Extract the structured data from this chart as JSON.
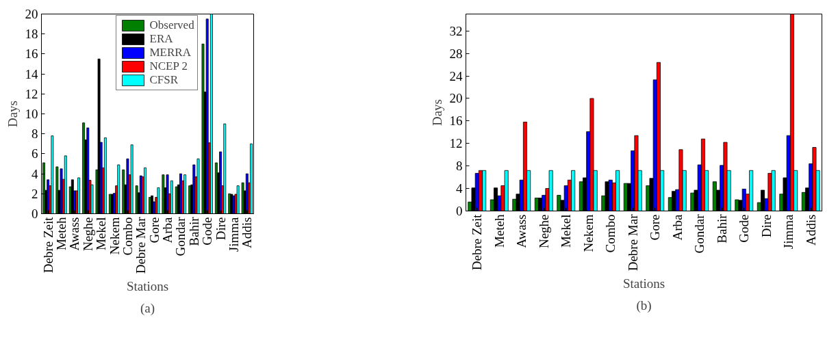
{
  "chart_data": [
    {
      "type": "bar",
      "xlabel": "Stations",
      "ylabel": "Days",
      "annotations": [
        "(a)"
      ],
      "legend": "top right",
      "grid": false,
      "categories": [
        "Debre Zeit",
        "Meteh",
        "Awass",
        "Neghe",
        "Mekel",
        "Nekem",
        "Combo",
        "Debre Mar",
        "Gore",
        "Arba",
        "Gondar",
        "Bahir",
        "Gode",
        "Dire",
        "Jimma",
        "Addis"
      ],
      "ylim": [
        0,
        20
      ],
      "yticks": [
        0,
        2,
        4,
        6,
        8,
        10,
        12,
        14,
        16,
        18,
        20
      ],
      "series": [
        {
          "name": "Observed",
          "color": "#007f00",
          "values": [
            5.1,
            4.7,
            2.7,
            9.1,
            4.4,
            1.95,
            4.4,
            2.8,
            1.65,
            3.9,
            2.7,
            2.8,
            17.0,
            5.1,
            2.0,
            3.1
          ]
        },
        {
          "name": "ERA",
          "color": "#000000",
          "values": [
            2.35,
            2.35,
            3.4,
            7.4,
            15.5,
            1.95,
            2.9,
            2.1,
            1.8,
            2.6,
            2.9,
            2.9,
            12.2,
            4.1,
            1.95,
            2.3
          ]
        },
        {
          "name": "MERRA",
          "color": "#0000ff",
          "values": [
            3.4,
            4.5,
            2.3,
            8.6,
            7.15,
            2.05,
            5.5,
            3.8,
            1.2,
            3.9,
            4.0,
            4.9,
            19.5,
            6.2,
            1.8,
            4.0
          ]
        },
        {
          "name": "NCEP 2",
          "color": "#ff0000",
          "values": [
            2.8,
            3.45,
            2.3,
            3.35,
            4.6,
            2.8,
            3.9,
            3.7,
            1.65,
            2.0,
            3.3,
            3.7,
            7.1,
            2.8,
            1.95,
            3.1
          ]
        },
        {
          "name": "CFSR",
          "color": "#00ffff",
          "values": [
            7.8,
            5.8,
            3.6,
            2.9,
            7.6,
            4.9,
            6.9,
            4.6,
            2.6,
            3.3,
            3.9,
            5.5,
            20,
            9.0,
            2.8,
            7.0
          ]
        }
      ]
    },
    {
      "type": "bar",
      "xlabel": "Stations",
      "ylabel": "Days",
      "annotations": [
        "(b)"
      ],
      "grid": false,
      "categories": [
        "Debre Zeit",
        "Meteh",
        "Awass",
        "Neghe",
        "Mekel",
        "Nekem",
        "Combo",
        "Debre Mar",
        "Gore",
        "Arba",
        "Gondar",
        "Bahir",
        "Gode",
        "Dire",
        "Jimma",
        "Addis"
      ],
      "ylim": [
        0,
        35
      ],
      "yticks": [
        0,
        4,
        8,
        12,
        16,
        20,
        24,
        28,
        32
      ],
      "series": [
        {
          "color": "#007f00",
          "values": [
            1.6,
            2.0,
            2.1,
            2.3,
            2.8,
            5.2,
            2.7,
            4.9,
            4.5,
            2.4,
            3.2,
            5.2,
            2.0,
            1.5,
            3.0,
            3.3
          ]
        },
        {
          "color": "#000000",
          "values": [
            4.1,
            4.1,
            3.0,
            2.3,
            1.9,
            5.9,
            5.2,
            4.9,
            5.8,
            3.5,
            3.7,
            3.7,
            1.9,
            3.7,
            5.9,
            4.1
          ]
        },
        {
          "color": "#0000ff",
          "values": [
            6.7,
            2.7,
            5.5,
            2.8,
            4.5,
            14.1,
            5.5,
            10.7,
            23.3,
            3.8,
            8.2,
            8.1,
            3.9,
            2.2,
            13.4,
            8.4
          ]
        },
        {
          "color": "#ff0000",
          "values": [
            7.2,
            4.5,
            15.8,
            4.0,
            5.5,
            20.0,
            5.0,
            13.4,
            26.4,
            10.9,
            12.8,
            12.2,
            3.0,
            6.7,
            35,
            11.3
          ]
        },
        {
          "color": "#00ffff",
          "values": [
            7.2,
            7.2,
            7.2,
            7.2,
            7.2,
            7.2,
            7.2,
            7.2,
            7.2,
            7.2,
            7.2,
            7.2,
            7.2,
            7.2,
            7.2,
            7.2
          ]
        }
      ]
    }
  ]
}
